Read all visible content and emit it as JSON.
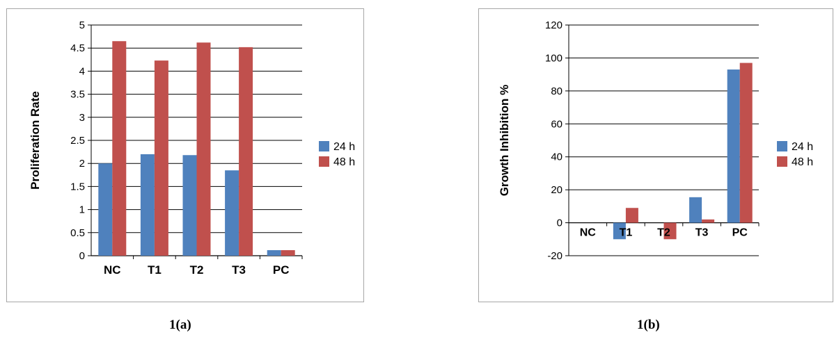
{
  "chart_data": [
    {
      "type": "bar",
      "title": "",
      "ylabel": "Proliferation Rate",
      "xlabel": "",
      "ylim": [
        0,
        5
      ],
      "yticks": [
        0,
        0.5,
        1,
        1.5,
        2,
        2.5,
        3,
        3.5,
        4,
        4.5,
        5
      ],
      "ytick_labels": [
        "0",
        "0.5",
        "1",
        "1.5",
        "2",
        "2.5",
        "3",
        "3.5",
        "4",
        "4.5",
        "5"
      ],
      "categories": [
        "NC",
        "T1",
        "T2",
        "T3",
        "PC"
      ],
      "series": [
        {
          "name": "24 h",
          "color": "#4f81bd",
          "values": [
            2.0,
            2.2,
            2.18,
            1.85,
            0.12
          ]
        },
        {
          "name": "48 h",
          "color": "#c0504d",
          "values": [
            4.65,
            4.23,
            4.62,
            4.52,
            0.12
          ]
        }
      ],
      "grid": "horizontal",
      "legend": "right"
    },
    {
      "type": "bar",
      "title": "",
      "ylabel": "Growth Inhibition %",
      "xlabel": "",
      "ylim": [
        -20,
        120
      ],
      "yticks": [
        -20,
        0,
        20,
        40,
        60,
        80,
        100,
        120
      ],
      "ytick_labels": [
        "-20",
        "0",
        "20",
        "40",
        "60",
        "80",
        "100",
        "120"
      ],
      "categories": [
        "NC",
        "T1",
        "T2",
        "T3",
        "PC"
      ],
      "series": [
        {
          "name": "24 h",
          "color": "#4f81bd",
          "values": [
            0,
            -10,
            0,
            15.5,
            93
          ]
        },
        {
          "name": "48 h",
          "color": "#c0504d",
          "values": [
            0,
            9,
            -10,
            2,
            97
          ]
        }
      ],
      "grid": "horizontal",
      "legend": "right"
    }
  ],
  "captions": [
    "1(a)",
    "1(b)"
  ]
}
